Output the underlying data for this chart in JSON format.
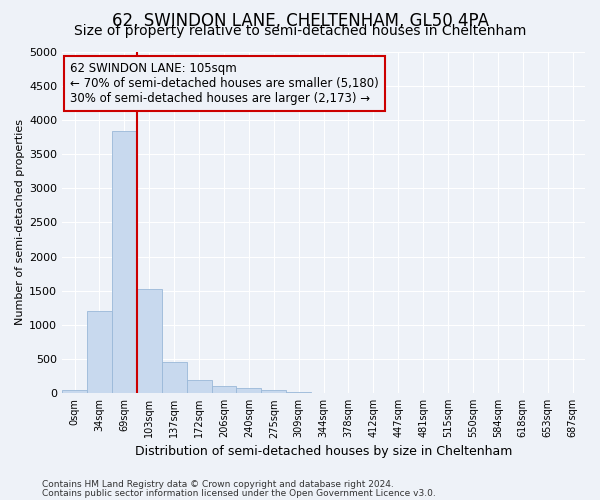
{
  "title": "62, SWINDON LANE, CHELTENHAM, GL50 4PA",
  "subtitle": "Size of property relative to semi-detached houses in Cheltenham",
  "xlabel": "Distribution of semi-detached houses by size in Cheltenham",
  "ylabel": "Number of semi-detached properties",
  "footnote1": "Contains HM Land Registry data © Crown copyright and database right 2024.",
  "footnote2": "Contains public sector information licensed under the Open Government Licence v3.0.",
  "annotation_title": "62 SWINDON LANE: 105sqm",
  "annotation_line1": "← 70% of semi-detached houses are smaller (5,180)",
  "annotation_line2": "30% of semi-detached houses are larger (2,173) →",
  "bar_categories": [
    "0sqm",
    "34sqm",
    "69sqm",
    "103sqm",
    "137sqm",
    "172sqm",
    "206sqm",
    "240sqm",
    "275sqm",
    "309sqm",
    "344sqm",
    "378sqm",
    "412sqm",
    "447sqm",
    "481sqm",
    "515sqm",
    "550sqm",
    "584sqm",
    "618sqm",
    "653sqm",
    "687sqm"
  ],
  "bar_values": [
    50,
    1200,
    3830,
    1530,
    450,
    190,
    110,
    75,
    50,
    20,
    8,
    3,
    2,
    1,
    0,
    0,
    0,
    0,
    0,
    0,
    0
  ],
  "bar_color": "#c8d9ee",
  "bar_edge_color": "#9ab8d8",
  "vline_color": "#cc0000",
  "vline_bar_index": 3,
  "ylim": [
    0,
    5000
  ],
  "yticks": [
    0,
    500,
    1000,
    1500,
    2000,
    2500,
    3000,
    3500,
    4000,
    4500,
    5000
  ],
  "bg_color": "#eef2f8",
  "grid_color": "#ffffff",
  "title_fontsize": 12,
  "subtitle_fontsize": 10,
  "annotation_fontsize": 8.5
}
